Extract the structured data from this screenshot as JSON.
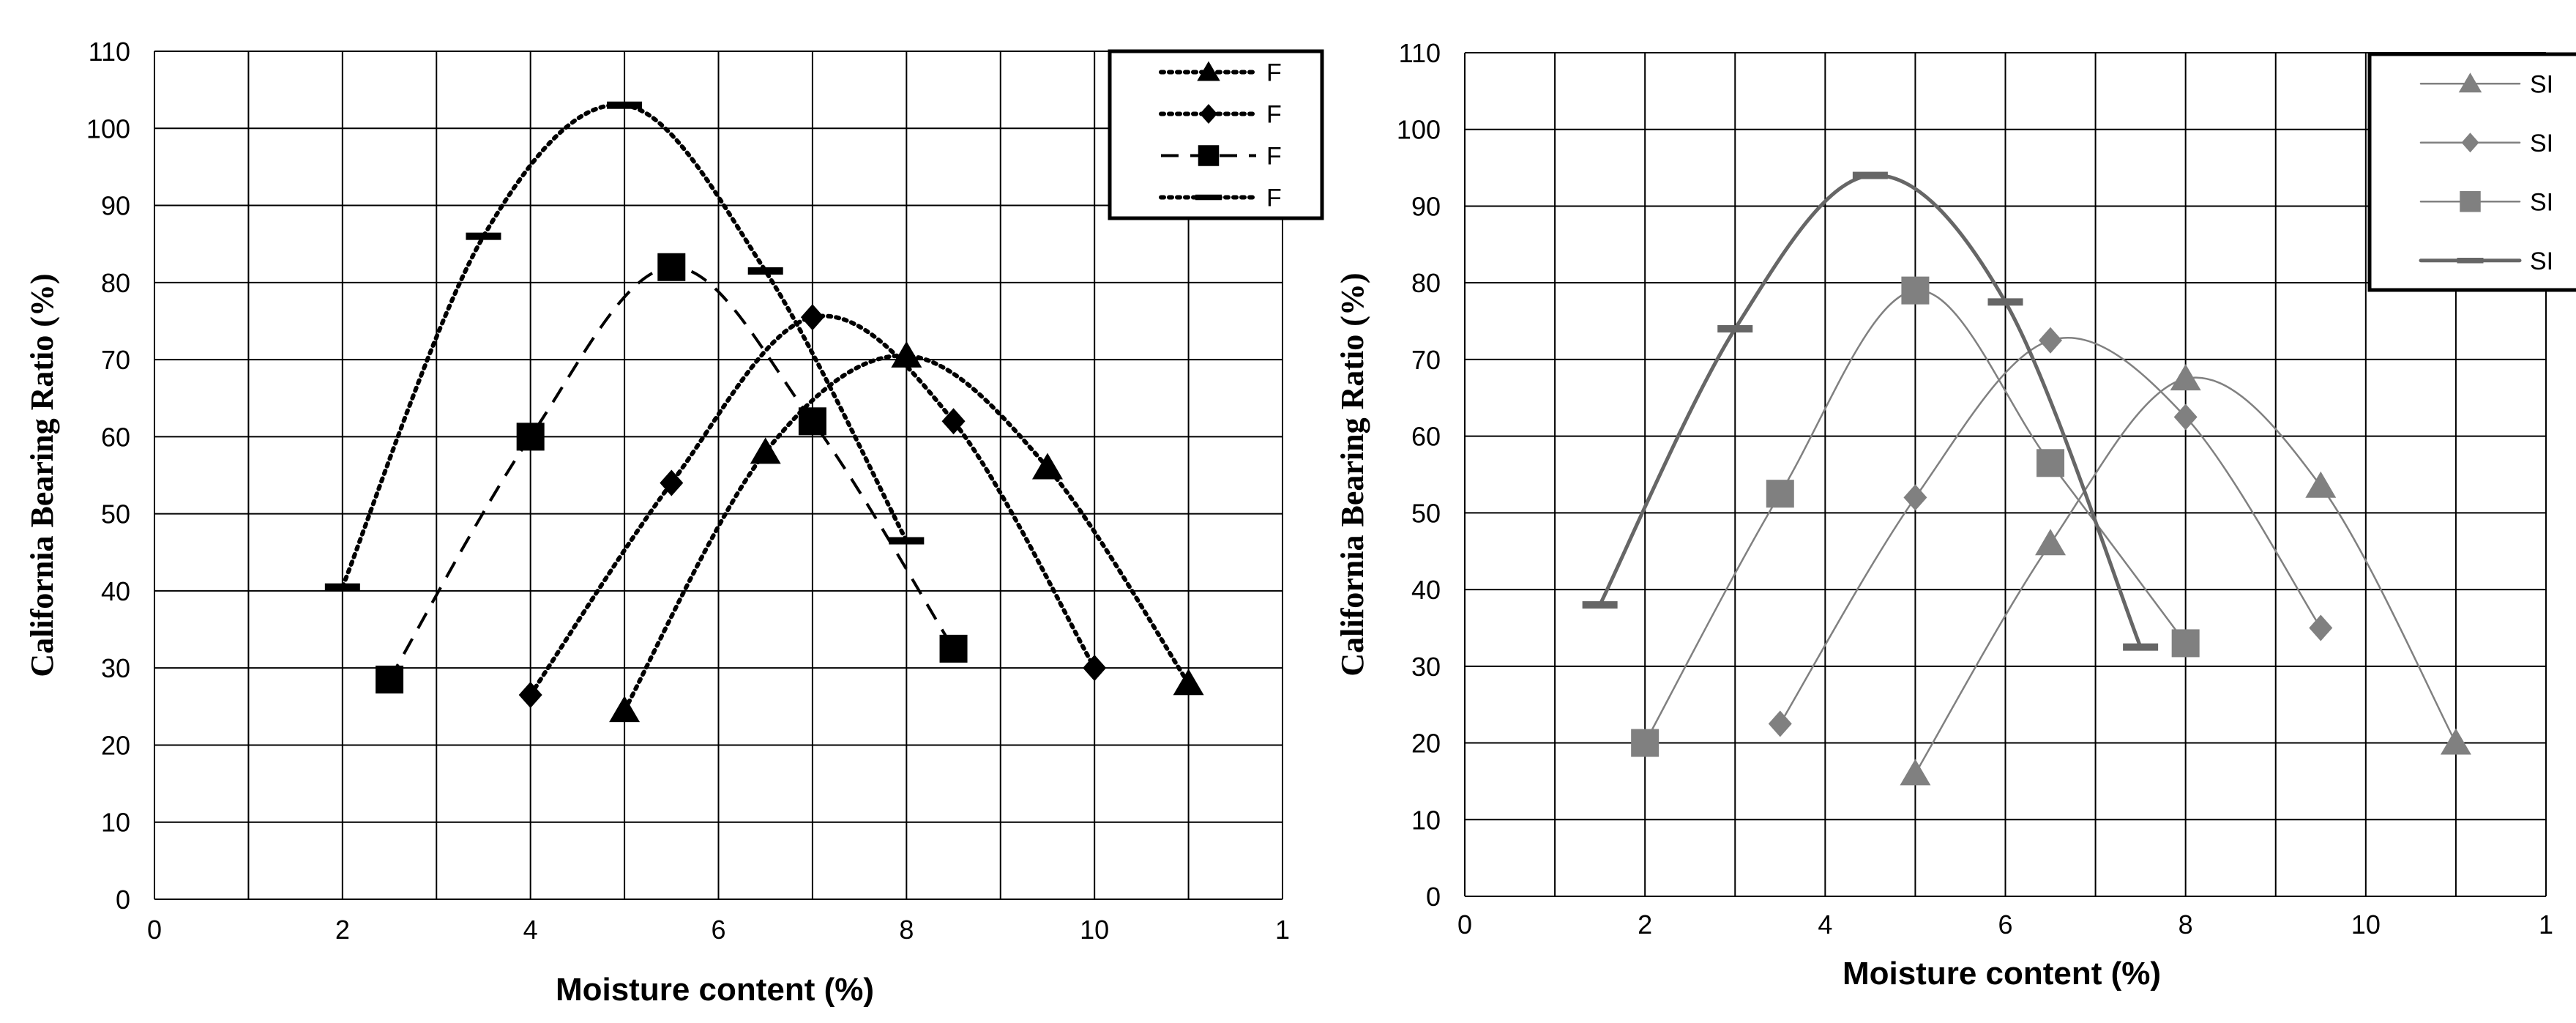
{
  "chart_data": [
    {
      "type": "line",
      "xlabel": "Moisture content (%)",
      "ylabel": "California Bearing Ratio (%)",
      "xlim": [
        0,
        12
      ],
      "ylim": [
        0,
        110
      ],
      "xticks": [
        "0",
        "2",
        "4",
        "6",
        "8",
        "10",
        "1"
      ],
      "yticks": [
        "0",
        "10",
        "20",
        "30",
        "40",
        "50",
        "60",
        "70",
        "80",
        "90",
        "100",
        "110"
      ],
      "grid": true,
      "legend_position": "top-right",
      "legend_labels": [
        "F",
        "F",
        "F",
        "F"
      ],
      "colors": {
        "series": "#000000"
      },
      "series": [
        {
          "marker": "triangle",
          "line": "dotted",
          "x": [
            5,
            6.5,
            8,
            9.5,
            11
          ],
          "y": [
            24.5,
            58,
            70.5,
            56,
            28
          ]
        },
        {
          "marker": "diamond",
          "line": "dotted",
          "x": [
            4,
            5.5,
            7,
            8.5,
            10
          ],
          "y": [
            26.5,
            54,
            75.5,
            62,
            30
          ]
        },
        {
          "marker": "square",
          "line": "dashed",
          "x": [
            2.5,
            4,
            5.5,
            7,
            8.5
          ],
          "y": [
            28.5,
            60,
            82,
            62,
            32.5
          ]
        },
        {
          "marker": "dash",
          "line": "dotted",
          "x": [
            2,
            3.5,
            5,
            6.5,
            8
          ],
          "y": [
            40.5,
            86,
            103,
            81.5,
            46.5
          ]
        }
      ]
    },
    {
      "type": "line",
      "xlabel": "Moisture content (%)",
      "ylabel": "California Bearing Ratio (%)",
      "xlim": [
        0,
        12
      ],
      "ylim": [
        0,
        110
      ],
      "xticks": [
        "0",
        "2",
        "4",
        "6",
        "8",
        "10",
        "1"
      ],
      "yticks": [
        "0",
        "10",
        "20",
        "30",
        "40",
        "50",
        "60",
        "70",
        "80",
        "90",
        "100",
        "110"
      ],
      "grid": true,
      "legend_position": "top-right",
      "legend_labels": [
        "SI",
        "SI",
        "SI",
        "SI"
      ],
      "colors": {
        "series": "#808080",
        "series_dark": "#666666"
      },
      "series": [
        {
          "marker": "triangle",
          "line": "solid",
          "x": [
            5,
            6.5,
            8,
            9.5,
            11
          ],
          "y": [
            16,
            46,
            67.5,
            53.5,
            20
          ]
        },
        {
          "marker": "diamond",
          "line": "solid",
          "x": [
            3.5,
            5,
            6.5,
            8,
            9.5
          ],
          "y": [
            22.5,
            52,
            72.5,
            62.5,
            35
          ]
        },
        {
          "marker": "square",
          "line": "solid",
          "x": [
            2,
            3.5,
            5,
            6.5,
            8
          ],
          "y": [
            20,
            52.5,
            79,
            56.5,
            33
          ]
        },
        {
          "marker": "dash",
          "line": "solid-thick",
          "x": [
            1.5,
            3,
            4.5,
            6,
            7.5
          ],
          "y": [
            38,
            74,
            94,
            77.5,
            32.5
          ]
        }
      ]
    }
  ]
}
